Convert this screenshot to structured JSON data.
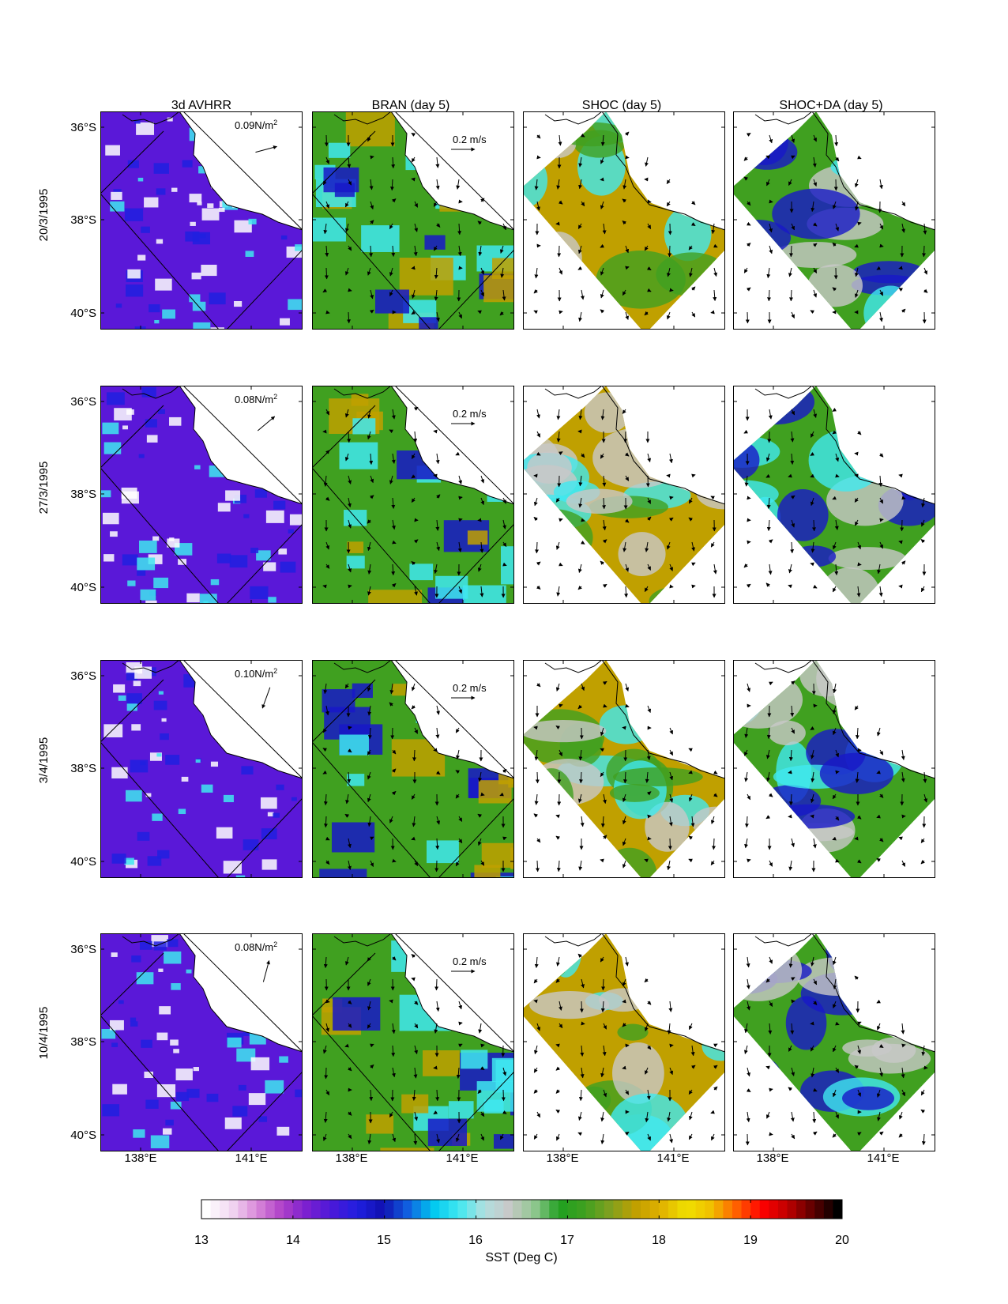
{
  "figure": {
    "columns": [
      "3d AVHRR",
      "BRAN (day 5)",
      "SHOC (day 5)",
      "SHOC+DA (day 5)"
    ],
    "rows": [
      {
        "date": "20/3/1995",
        "wind_label": "0.09N/m",
        "wind_dir_deg": -15
      },
      {
        "date": "27/3/1995",
        "wind_label": "0.08N/m",
        "wind_dir_deg": -40
      },
      {
        "date": "3/4/1995",
        "wind_label": "0.10N/m",
        "wind_dir_deg": 110
      },
      {
        "date": "10/4/1995",
        "wind_label": "0.08N/m",
        "wind_dir_deg": -75
      }
    ],
    "wind_unit_superscript": "2",
    "current_scale_label": "0.2 m/s",
    "lat_ticks": [
      "36°S",
      "38°S",
      "40°S"
    ],
    "lon_ticks": [
      "138°E",
      "141°E"
    ],
    "colorbar": {
      "ticks": [
        "13",
        "14",
        "15",
        "16",
        "17",
        "18",
        "19",
        "20"
      ],
      "label": "SST (Deg C)",
      "min": 13,
      "max": 20,
      "colors": [
        "#ffffff",
        "#f2d9f2",
        "#d98ad9",
        "#b040c8",
        "#7a20d0",
        "#4a18d8",
        "#2020e0",
        "#1010b0",
        "#1060e0",
        "#00c8f0",
        "#40e8f0",
        "#b0e0e0",
        "#c8c8c8",
        "#90c890",
        "#20a020",
        "#40a020",
        "#80a020",
        "#c0a000",
        "#e0b000",
        "#f0e000",
        "#f0c000",
        "#ff6000",
        "#ff0000",
        "#c00000",
        "#600000",
        "#000000"
      ]
    },
    "panel_colors": {
      "avhrr": [
        "#5a18d8",
        "#2020e0",
        "#40e8f0",
        "#ffffff"
      ],
      "bran": [
        "#40a020",
        "#40e8f0",
        "#1818c8",
        "#c0a000"
      ],
      "shoc": [
        "#c0a000",
        "#40a020",
        "#c8c8c8",
        "#40e8f0"
      ],
      "shocda": [
        "#40a020",
        "#c8c8c8",
        "#40e8f0",
        "#1818c8"
      ]
    }
  }
}
